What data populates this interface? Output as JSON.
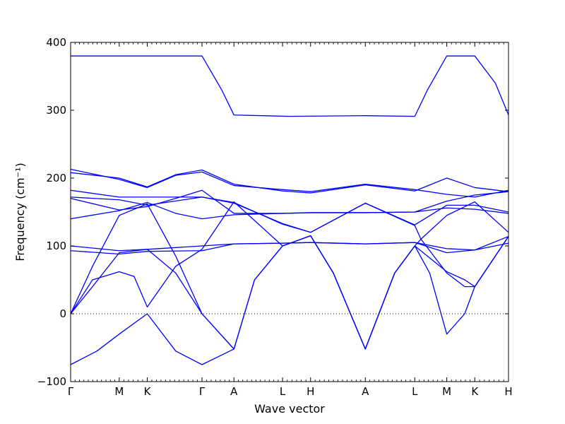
{
  "chart_data": {
    "type": "line",
    "title": "",
    "xlabel": "Wave vector",
    "ylabel": "Frequency",
    "ylabel_unit": "(cm⁻¹)",
    "ylim": [
      -100,
      400
    ],
    "yticks": [
      -100,
      0,
      100,
      200,
      300,
      400
    ],
    "zero_line": true,
    "line_color": "#0000ff",
    "high_symmetry_points": [
      {
        "label": "Γ",
        "x": 0
      },
      {
        "label": "M",
        "x": 0.111
      },
      {
        "label": "K",
        "x": 0.175
      },
      {
        "label": "Γ",
        "x": 0.3
      },
      {
        "label": "A",
        "x": 0.373
      },
      {
        "label": "L",
        "x": 0.484
      },
      {
        "label": "H",
        "x": 0.548
      },
      {
        "label": "A",
        "x": 0.673
      },
      {
        "label": "L",
        "x": 0.786
      },
      {
        "label": "M",
        "x": 0.859
      },
      {
        "label": "K",
        "x": 0.923
      },
      {
        "label": "H",
        "x": 1.0
      }
    ],
    "series": [
      {
        "values": [
          [
            0,
            380
          ],
          [
            0.3,
            380
          ],
          [
            0.345,
            330
          ],
          [
            0.373,
            293
          ],
          [
            0.5,
            291
          ],
          [
            0.673,
            292
          ],
          [
            0.786,
            291
          ],
          [
            0.815,
            330
          ],
          [
            0.859,
            380
          ],
          [
            0.923,
            380
          ],
          [
            0.97,
            340
          ],
          [
            1.0,
            293
          ]
        ]
      },
      {
        "values": [
          [
            0,
            208
          ],
          [
            0.111,
            200
          ],
          [
            0.175,
            187
          ],
          [
            0.24,
            205
          ],
          [
            0.3,
            212
          ],
          [
            0.373,
            191
          ],
          [
            0.484,
            181
          ],
          [
            0.548,
            178
          ],
          [
            0.673,
            190
          ],
          [
            0.786,
            181
          ],
          [
            0.859,
            200
          ],
          [
            0.923,
            186
          ],
          [
            1.0,
            180
          ]
        ]
      },
      {
        "values": [
          [
            0,
            213
          ],
          [
            0.111,
            198
          ],
          [
            0.175,
            186
          ],
          [
            0.24,
            204
          ],
          [
            0.3,
            209
          ],
          [
            0.373,
            189
          ],
          [
            0.484,
            183
          ],
          [
            0.548,
            180
          ],
          [
            0.673,
            191
          ],
          [
            0.786,
            183
          ],
          [
            0.859,
            176
          ],
          [
            0.923,
            172
          ],
          [
            1.0,
            182
          ]
        ]
      },
      {
        "values": [
          [
            0,
            182
          ],
          [
            0.111,
            172
          ],
          [
            0.175,
            172
          ],
          [
            0.3,
            172
          ],
          [
            0.373,
            163
          ],
          [
            0.484,
            133
          ],
          [
            0.548,
            120
          ],
          [
            0.673,
            163
          ],
          [
            0.786,
            131
          ],
          [
            0.859,
            160
          ],
          [
            0.923,
            160
          ],
          [
            1.0,
            150
          ]
        ]
      },
      {
        "values": [
          [
            0,
            170
          ],
          [
            0.111,
            153
          ],
          [
            0.175,
            158
          ],
          [
            0.24,
            170
          ],
          [
            0.3,
            182
          ],
          [
            0.373,
            148
          ],
          [
            0.484,
            148
          ],
          [
            0.548,
            149
          ],
          [
            0.673,
            149
          ],
          [
            0.786,
            150
          ],
          [
            0.859,
            156
          ],
          [
            0.923,
            154
          ],
          [
            1.0,
            148
          ]
        ]
      },
      {
        "values": [
          [
            0,
            140
          ],
          [
            0.111,
            152
          ],
          [
            0.175,
            164
          ],
          [
            0.24,
            148
          ],
          [
            0.3,
            140
          ],
          [
            0.373,
            146
          ],
          [
            0.484,
            148
          ],
          [
            0.548,
            149
          ],
          [
            0.673,
            149
          ],
          [
            0.786,
            150
          ],
          [
            0.859,
            166
          ],
          [
            0.923,
            175
          ],
          [
            1.0,
            180
          ]
        ]
      },
      {
        "values": [
          [
            0,
            172
          ],
          [
            0.111,
            168
          ],
          [
            0.175,
            160
          ],
          [
            0.3,
            172
          ],
          [
            0.373,
            164
          ],
          [
            0.484,
            132
          ],
          [
            0.548,
            120
          ],
          [
            0.673,
            163
          ],
          [
            0.786,
            130
          ],
          [
            0.8,
            110
          ],
          [
            0.859,
            145
          ],
          [
            0.923,
            165
          ],
          [
            1.0,
            120
          ]
        ]
      },
      {
        "values": [
          [
            0,
            100
          ],
          [
            0.111,
            93
          ],
          [
            0.175,
            95
          ],
          [
            0.3,
            100
          ],
          [
            0.373,
            103
          ],
          [
            0.484,
            104
          ],
          [
            0.548,
            105
          ],
          [
            0.673,
            103
          ],
          [
            0.786,
            105
          ],
          [
            0.859,
            96
          ],
          [
            0.923,
            94
          ],
          [
            1.0,
            104
          ]
        ]
      },
      {
        "values": [
          [
            0,
            93
          ],
          [
            0.111,
            88
          ],
          [
            0.175,
            92
          ],
          [
            0.3,
            93
          ],
          [
            0.373,
            103
          ],
          [
            0.484,
            104
          ],
          [
            0.548,
            105
          ],
          [
            0.673,
            103
          ],
          [
            0.786,
            105
          ],
          [
            0.859,
            90
          ],
          [
            0.923,
            94
          ],
          [
            1.0,
            114
          ]
        ]
      },
      {
        "values": [
          [
            0,
            0
          ],
          [
            0.05,
            70
          ],
          [
            0.111,
            145
          ],
          [
            0.175,
            162
          ],
          [
            0.24,
            85
          ],
          [
            0.3,
            0
          ],
          [
            0.373,
            -52
          ],
          [
            0.42,
            50
          ],
          [
            0.484,
            100
          ],
          [
            0.548,
            115
          ],
          [
            0.6,
            60
          ],
          [
            0.673,
            -52
          ],
          [
            0.74,
            60
          ],
          [
            0.786,
            100
          ],
          [
            0.8,
            110
          ],
          [
            0.859,
            60
          ],
          [
            0.9,
            40
          ],
          [
            0.923,
            40
          ],
          [
            1.0,
            114
          ]
        ]
      },
      {
        "values": [
          [
            0,
            0
          ],
          [
            0.05,
            50
          ],
          [
            0.111,
            62
          ],
          [
            0.145,
            55
          ],
          [
            0.175,
            10
          ],
          [
            0.24,
            70
          ],
          [
            0.3,
            95
          ],
          [
            0.373,
            165
          ],
          [
            0.484,
            100
          ],
          [
            0.548,
            115
          ],
          [
            0.6,
            60
          ],
          [
            0.673,
            -52
          ],
          [
            0.74,
            60
          ],
          [
            0.786,
            100
          ],
          [
            0.859,
            62
          ],
          [
            0.9,
            50
          ],
          [
            0.923,
            40
          ],
          [
            1.0,
            114
          ]
        ]
      },
      {
        "values": [
          [
            0,
            -75
          ],
          [
            0.06,
            -55
          ],
          [
            0.111,
            -30
          ],
          [
            0.175,
            0
          ],
          [
            0.24,
            -55
          ],
          [
            0.3,
            -75
          ],
          [
            0.373,
            -52
          ],
          [
            0.42,
            50
          ],
          [
            0.484,
            100
          ],
          [
            0.548,
            115
          ],
          [
            0.6,
            60
          ],
          [
            0.673,
            -52
          ],
          [
            0.74,
            60
          ],
          [
            0.786,
            100
          ],
          [
            0.82,
            60
          ],
          [
            0.859,
            -30
          ],
          [
            0.9,
            0
          ],
          [
            0.923,
            40
          ],
          [
            1.0,
            114
          ]
        ]
      },
      {
        "values": [
          [
            0,
            0
          ],
          [
            0.05,
            40
          ],
          [
            0.111,
            90
          ],
          [
            0.175,
            95
          ],
          [
            0.24,
            60
          ],
          [
            0.3,
            0
          ],
          [
            0.373,
            -52
          ]
        ]
      }
    ]
  }
}
